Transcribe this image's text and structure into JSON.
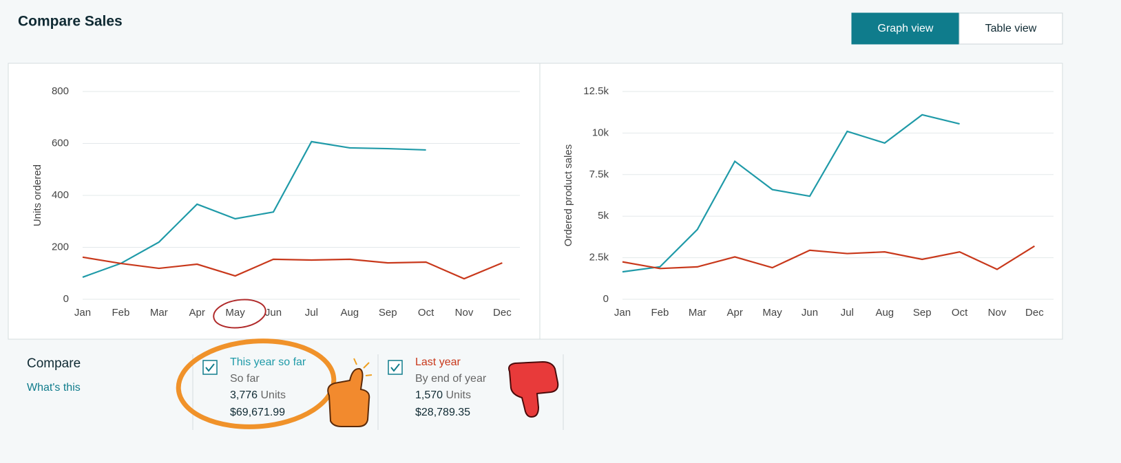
{
  "header": {
    "title": "Compare Sales",
    "buttons": [
      "Graph view",
      "Table view"
    ]
  },
  "chart_data": [
    {
      "type": "line",
      "ylabel": "Units ordered",
      "categories": [
        "Jan",
        "Feb",
        "Mar",
        "Apr",
        "May",
        "Jun",
        "Jul",
        "Aug",
        "Sep",
        "Oct",
        "Nov",
        "Dec"
      ],
      "ylim": [
        0,
        800
      ],
      "yticks": [
        0,
        200,
        400,
        600,
        800
      ],
      "grid": true,
      "series": [
        {
          "name": "This year so far",
          "color": "#1f9aa8",
          "values": [
            85,
            138,
            220,
            366,
            310,
            336,
            607,
            583,
            580,
            575,
            null,
            null
          ]
        },
        {
          "name": "Last year",
          "color": "#c8381b",
          "values": [
            162,
            138,
            119,
            135,
            90,
            154,
            151,
            154,
            140,
            143,
            79,
            140
          ]
        }
      ]
    },
    {
      "type": "line",
      "ylabel": "Ordered product sales",
      "categories": [
        "Jan",
        "Feb",
        "Mar",
        "Apr",
        "May",
        "Jun",
        "Jul",
        "Aug",
        "Sep",
        "Oct",
        "Nov",
        "Dec"
      ],
      "ylim": [
        0,
        12500
      ],
      "yticks": [
        0,
        {
          "value": 2500,
          "label": "2.5k"
        },
        {
          "value": 5000,
          "label": "5k"
        },
        {
          "value": 7500,
          "label": "7.5k"
        },
        {
          "value": 10000,
          "label": "10k"
        },
        {
          "value": 12500,
          "label": "12.5k"
        }
      ],
      "grid": true,
      "series": [
        {
          "name": "This year so far",
          "color": "#1f9aa8",
          "values": [
            1650,
            1950,
            4200,
            8300,
            6600,
            6200,
            10100,
            9400,
            11100,
            10550,
            null,
            null
          ]
        },
        {
          "name": "Last year",
          "color": "#c8381b",
          "values": [
            2250,
            1850,
            1950,
            2550,
            1900,
            2950,
            2750,
            2850,
            2400,
            2850,
            1800,
            3200
          ]
        }
      ]
    }
  ],
  "compare": {
    "title": "Compare",
    "link": "What's this",
    "items": [
      {
        "subtitle": "So far",
        "units": "3,776",
        "units_label": "Units",
        "sales": "$69,671.99"
      },
      {
        "subtitle": "By end of year",
        "units": "1,570",
        "units_label": "Units",
        "sales": "$28,789.35"
      }
    ]
  }
}
